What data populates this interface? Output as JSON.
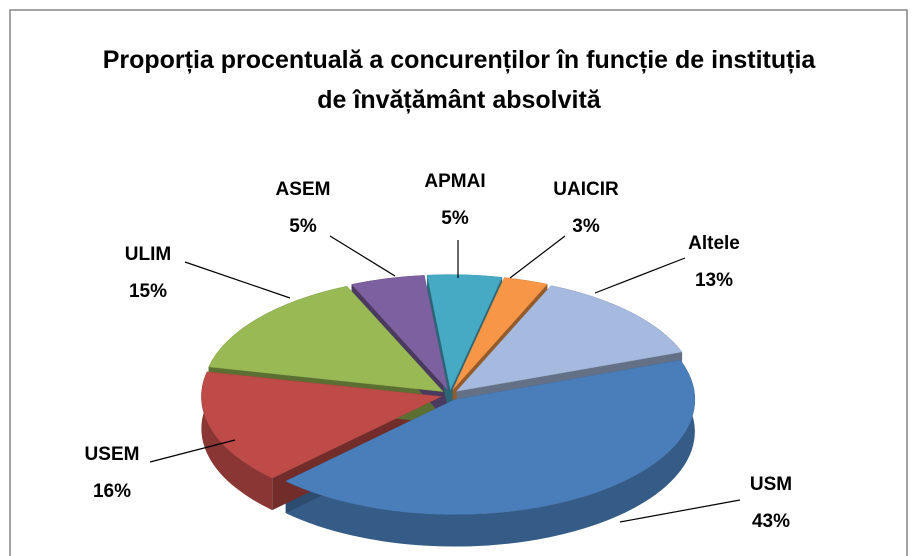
{
  "chart_data": {
    "type": "pie",
    "title": "Proporția procentuală a concurenților în funcție de instituția de învățământ absolvită",
    "categories": [
      "USM",
      "USEM",
      "ULIM",
      "ASEM",
      "APMAI",
      "UAICIR",
      "Altele"
    ],
    "values": [
      43,
      16,
      15,
      5,
      5,
      3,
      13
    ],
    "value_labels": [
      "43%",
      "16%",
      "15%",
      "5%",
      "5%",
      "3%",
      "13%"
    ],
    "colors": [
      "#4a7ebb",
      "#be4b48",
      "#98b954",
      "#7d60a0",
      "#46aac5",
      "#f79646",
      "#a5bade"
    ]
  }
}
